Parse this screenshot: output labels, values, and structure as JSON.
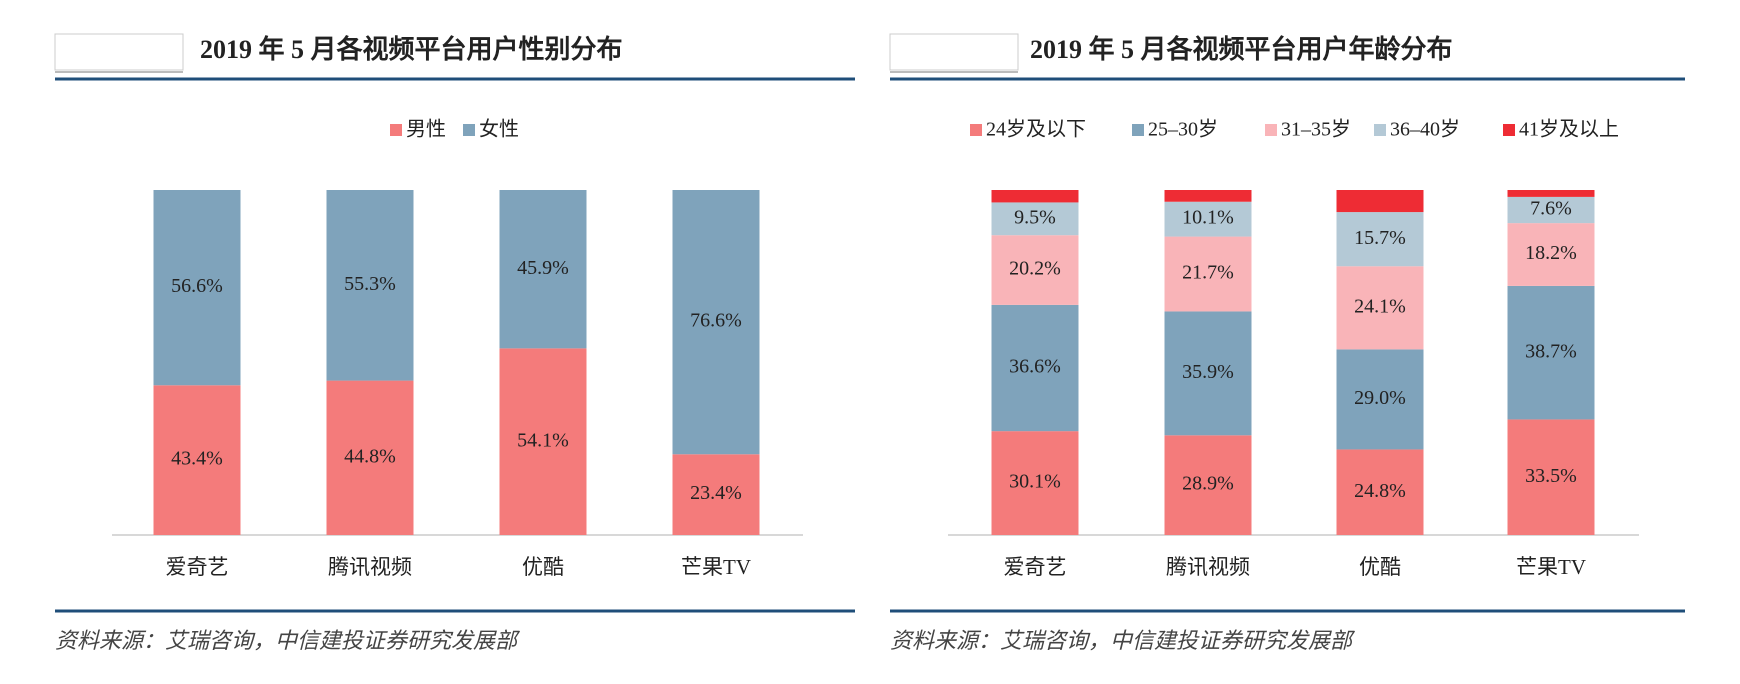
{
  "chart_data": [
    {
      "type": "stacked_bar",
      "title": "2019 年 5 月各视频平台用户性别分布",
      "categories": [
        "爱奇艺",
        "腾讯视频",
        "优酷",
        "芒果TV"
      ],
      "series": [
        {
          "name": "男性",
          "color": "#f47b7b",
          "values": [
            43.4,
            44.8,
            54.1,
            23.4
          ],
          "value_labels": [
            "43.4%",
            "44.8%",
            "54.1%",
            "23.4%"
          ]
        },
        {
          "name": "女性",
          "color": "#7fa3bb",
          "values": [
            56.6,
            55.3,
            45.9,
            76.6
          ],
          "value_labels": [
            "56.6%",
            "55.3%",
            "45.9%",
            "76.6%"
          ]
        }
      ],
      "legend": "top",
      "source": "资料来源：艾瑞咨询，中信建投证券研究发展部"
    },
    {
      "type": "stacked_bar",
      "title": "2019 年 5 月各视频平台用户年龄分布",
      "categories": [
        "爱奇艺",
        "腾讯视频",
        "优酷",
        "芒果TV"
      ],
      "series": [
        {
          "name": "24岁及以下",
          "color": "#f47b7b",
          "values": [
            30.1,
            28.9,
            24.8,
            33.5
          ],
          "value_labels": [
            "30.1%",
            "28.9%",
            "24.8%",
            "33.5%"
          ]
        },
        {
          "name": "25–30岁",
          "color": "#7fa3bb",
          "values": [
            36.6,
            35.9,
            29.0,
            38.7
          ],
          "value_labels": [
            "36.6%",
            "35.9%",
            "29.0%",
            "38.7%"
          ]
        },
        {
          "name": "31–35岁",
          "color": "#f9b4b8",
          "values": [
            20.2,
            21.7,
            24.1,
            18.2
          ],
          "value_labels": [
            "20.2%",
            "21.7%",
            "24.1%",
            "18.2%"
          ]
        },
        {
          "name": "36–40岁",
          "color": "#b4c9d6",
          "values": [
            9.5,
            10.1,
            15.7,
            7.6
          ],
          "value_labels": [
            "9.5%",
            "10.1%",
            "15.7%",
            "7.6%"
          ]
        },
        {
          "name": "41岁及以上",
          "color": "#ee2c34",
          "values": [
            3.6,
            3.4,
            6.4,
            2.0
          ]
        }
      ],
      "legend": "top",
      "source": "资料来源：艾瑞咨询，中信建投证券研究发展部"
    }
  ]
}
